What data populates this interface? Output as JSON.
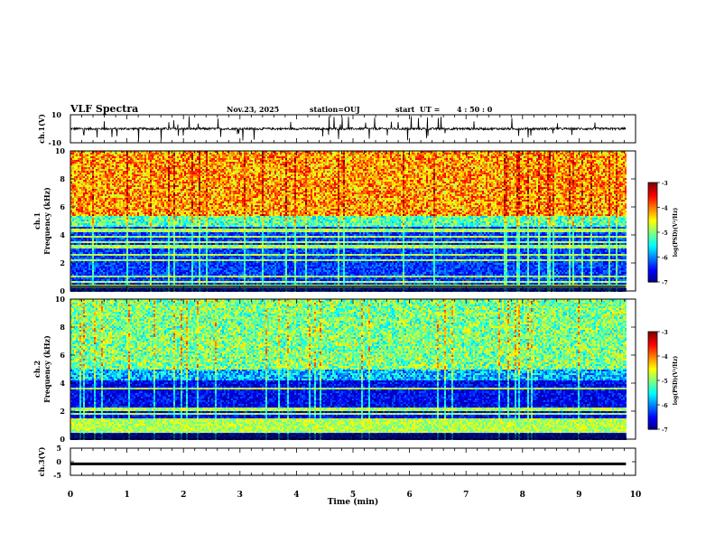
{
  "header": {
    "title": "VLF Spectra",
    "date": "Nov.23, 2025",
    "station": "station=OUJ",
    "start_label": "start  UT =",
    "start_time": "4 : 50 : 0"
  },
  "chart_data": [
    {
      "type": "line",
      "panel": "ch1-waveform",
      "ylabel": "ch.1(V)",
      "ylim": [
        -10,
        10
      ],
      "yticks": [
        "10",
        "-10"
      ],
      "xlim": [
        0,
        10
      ],
      "baseline": 0,
      "description_series": "noisy trace near 0 V with frequent downward/upward spikes"
    },
    {
      "type": "heatmap",
      "panel": "ch1-spectrogram",
      "ylabel": "ch.1\nFrequency  (kHz)",
      "ylim": [
        0,
        10
      ],
      "yticks": [
        "0",
        "2",
        "4",
        "6",
        "8",
        "10"
      ],
      "xlim": [
        0,
        10
      ],
      "data_end_min": 9.83,
      "colorbar": {
        "label": "log(PSD)(V²/Hz)",
        "range": [
          -7,
          -3
        ],
        "ticks": [
          "-3",
          "-4",
          "-5",
          "-6",
          "-7"
        ]
      },
      "pattern": "high power (yellow/red) above ~5 kHz with vertical sferic streaks; low power (blue) below ~4.5 kHz with horizontal narrowband lines"
    },
    {
      "type": "heatmap",
      "panel": "ch2-spectrogram",
      "ylabel": "ch.2\nFrequency  (kHz)",
      "ylim": [
        0,
        10
      ],
      "yticks": [
        "0",
        "2",
        "4",
        "6",
        "8",
        "10"
      ],
      "xlim": [
        0,
        10
      ],
      "data_end_min": 9.83,
      "colorbar": {
        "label": "log(PSD)(V²/Hz)",
        "range": [
          -7,
          -3
        ],
        "ticks": [
          "-3",
          "-4",
          "-5",
          "-6",
          "-7"
        ]
      },
      "pattern": "moderate power (green/cyan) above ~5 kHz with streaks; dark blue below ~4 kHz with horizontal lines"
    },
    {
      "type": "line",
      "panel": "ch3-waveform",
      "ylabel": "ch.3(V)",
      "ylim": [
        -5,
        5
      ],
      "yticks": [
        "5",
        "0",
        "-5"
      ],
      "xlim": [
        0,
        10
      ],
      "level": -0.8,
      "xlabel": "Time  (min)",
      "xticks": [
        "0",
        "1",
        "2",
        "3",
        "4",
        "5",
        "6",
        "7",
        "8",
        "9",
        "10"
      ]
    }
  ],
  "colors": {
    "frame": "#000000",
    "background": "#ffffff"
  }
}
